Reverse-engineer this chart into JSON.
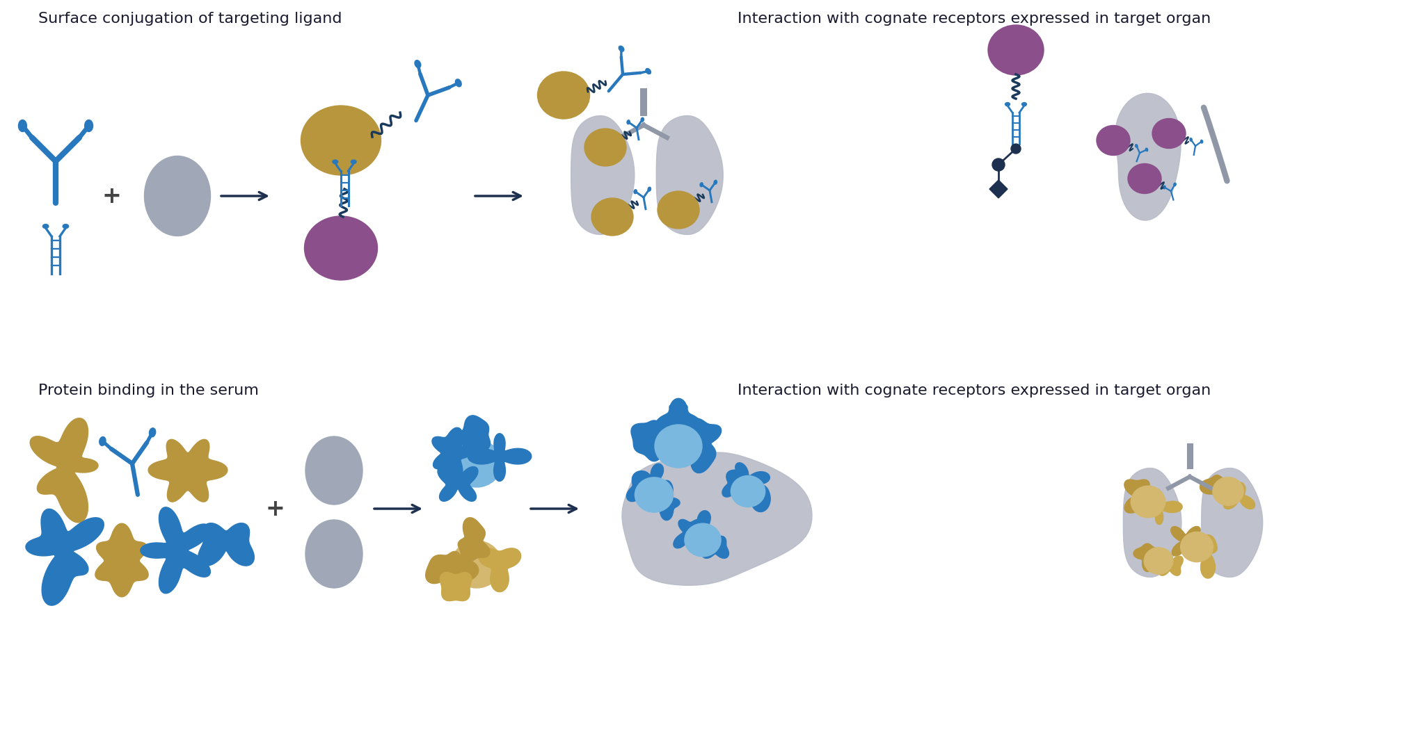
{
  "bg_color": "#ffffff",
  "text_color": "#1a1a2e",
  "blue": "#2878be",
  "dark_blue": "#1a3a5c",
  "gold": "#b8963e",
  "gold2": "#c8a84b",
  "purple": "#8b4f8b",
  "gray": "#a0a8b8",
  "light_blue": "#6ab0e0",
  "navy": "#1e3050",
  "organ_gray": "#b8bcc8",
  "label1": "Surface conjugation of targeting ligand",
  "label2": "Interaction with cognate receptors expressed in target organ",
  "label3": "Protein binding in the serum",
  "label4": "Interaction with cognate receptors expressed in target organ",
  "font_size_label": 16,
  "figsize": [
    20.48,
    10.72
  ],
  "dpi": 100
}
